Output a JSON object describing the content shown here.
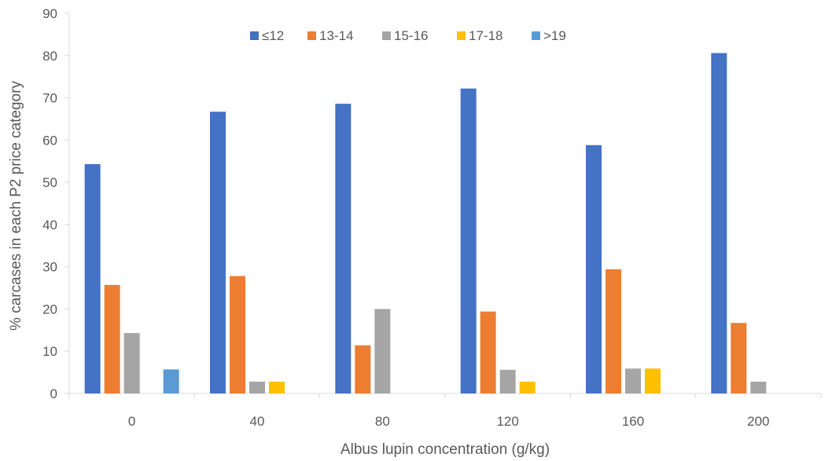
{
  "chart_data": {
    "type": "bar",
    "xlabel": "Albus lupin concentration (g/kg)",
    "ylabel": "% carcases in each P2 price category",
    "ylim": [
      0,
      90
    ],
    "yticks": [
      0,
      10,
      20,
      30,
      40,
      50,
      60,
      70,
      80,
      90
    ],
    "grid": false,
    "legend_position": "top",
    "categories": [
      "0",
      "40",
      "80",
      "120",
      "160",
      "200"
    ],
    "series": [
      {
        "name": "≤12",
        "color": "#4472C4",
        "values": [
          54.3,
          66.7,
          68.6,
          72.2,
          58.8,
          80.6
        ]
      },
      {
        "name": "13-14",
        "color": "#ED7D31",
        "values": [
          25.7,
          27.8,
          11.4,
          19.4,
          29.4,
          16.7
        ]
      },
      {
        "name": "15-16",
        "color": "#A5A5A5",
        "values": [
          14.3,
          2.8,
          20.0,
          5.6,
          5.9,
          2.8
        ]
      },
      {
        "name": "17-18",
        "color": "#FFC000",
        "values": [
          0,
          2.8,
          0,
          2.8,
          5.9,
          0
        ]
      },
      {
        "name": ">19",
        "color": "#5B9BD5",
        "values": [
          5.7,
          0,
          0,
          0,
          0,
          0
        ]
      }
    ]
  }
}
